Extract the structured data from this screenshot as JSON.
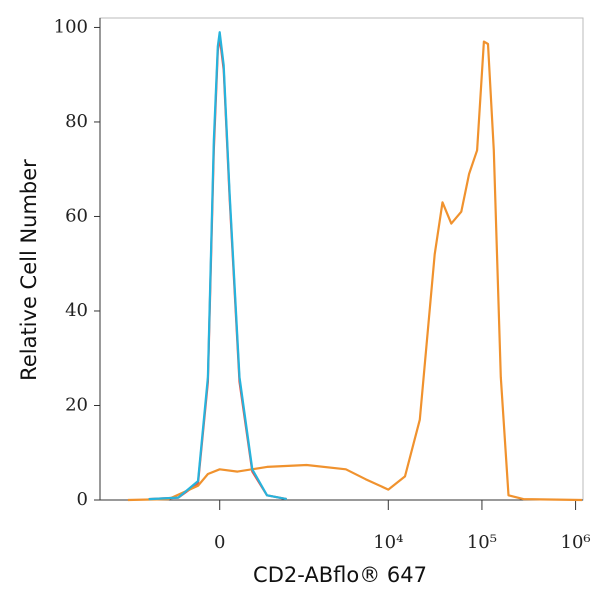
{
  "chart_data": {
    "type": "line",
    "y_label": "Relative Cell Number",
    "x_label": "CD2-ABflo® 647",
    "xscale": "biexponential",
    "xlim": [
      -3000,
      1200000
    ],
    "xticks": [
      {
        "value": 0,
        "label": "0"
      },
      {
        "value": 10000,
        "label": "10⁴"
      },
      {
        "value": 100000,
        "label": "10⁵"
      },
      {
        "value": 1000000,
        "label": "10⁶"
      }
    ],
    "ylim": [
      0,
      102
    ],
    "yticks": [
      0,
      20,
      40,
      60,
      80,
      100
    ],
    "series": [
      {
        "color": "#e8534a",
        "x": [
          -881,
          -381,
          -177,
          -93,
          -46,
          -15,
          0,
          31,
          78,
          160,
          282,
          457,
          793
        ],
        "values": [
          0.2,
          0.5,
          3.5,
          25,
          74,
          95,
          98,
          91,
          64,
          25,
          6,
          1,
          0.2
        ]
      },
      {
        "color": "#f0922e",
        "x": [
          -1500,
          -514,
          -177,
          -93,
          0,
          143,
          457,
          1322,
          3520,
          5720,
          9990,
          15100,
          21700,
          31300,
          37900,
          47100,
          60200,
          73000,
          88700,
          105000,
          116000,
          134000,
          159000,
          192000,
          277000,
          1170000
        ],
        "values": [
          0,
          0.2,
          3,
          5.5,
          6.5,
          6,
          7,
          7.4,
          6.5,
          4.4,
          2.2,
          5,
          17,
          52,
          63,
          58.5,
          61,
          69,
          74,
          97,
          96.5,
          74,
          26,
          1,
          0.2,
          0
        ]
      },
      {
        "color": "#27b3dc",
        "x": [
          -881,
          -381,
          -177,
          -93,
          -46,
          -15,
          0,
          31,
          78,
          160,
          282,
          457,
          793
        ],
        "values": [
          0.2,
          0.5,
          4,
          26,
          76,
          96,
          99,
          92,
          65,
          26,
          6.5,
          1,
          0.2
        ]
      }
    ]
  }
}
